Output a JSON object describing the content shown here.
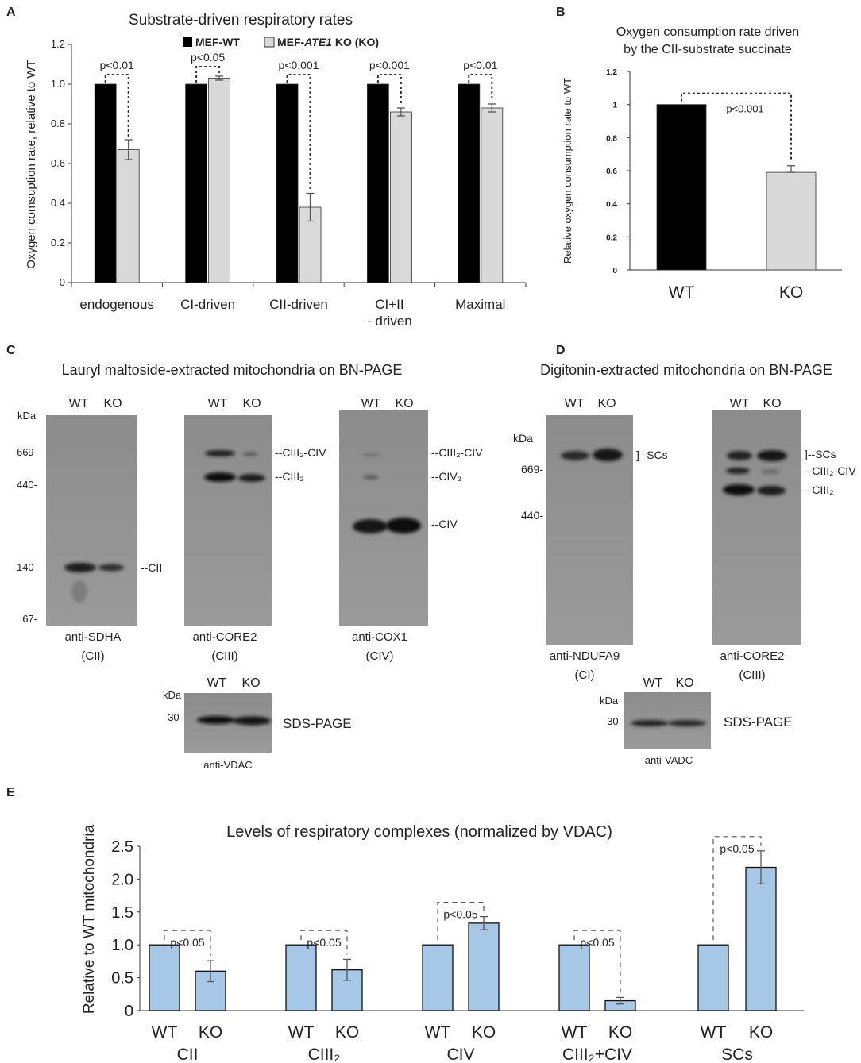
{
  "panel_letters": {
    "a": "A",
    "b": "B",
    "c": "C",
    "d": "D",
    "e": "E"
  },
  "chart_data": [
    {
      "id": "A",
      "type": "bar",
      "title": "Substrate-driven respiratory rates",
      "ylabel": "Oxygen comsuption rate, relative to WT",
      "xlabel": "",
      "ylim": [
        0,
        1.2
      ],
      "yticks": [
        "0",
        "0.2",
        "0.4",
        "0.6",
        "0.8",
        "1.0",
        "1.2"
      ],
      "categories": [
        "endogenous",
        "CI-driven",
        "CII-driven",
        "CI+II",
        "Maximal"
      ],
      "category_line2": [
        "",
        "",
        "",
        "- driven",
        ""
      ],
      "legend": {
        "wt": "MEF-WT",
        "ko_prefix": "MEF-",
        "ko_italic": "ATE1",
        "ko_suffix": " KO (KO)"
      },
      "series": [
        {
          "name": "MEF-WT",
          "color": "#000000",
          "values": [
            1.0,
            1.0,
            1.0,
            1.0,
            1.0
          ],
          "errors": [
            0.0,
            0.0,
            0.0,
            0.0,
            0.0
          ]
        },
        {
          "name": "MEF-ATE1 KO (KO)",
          "color": "#d9d9d9",
          "values": [
            0.67,
            1.03,
            0.38,
            0.86,
            0.88
          ],
          "errors": [
            0.05,
            0.01,
            0.07,
            0.02,
            0.02
          ]
        }
      ],
      "annotations": [
        "p<0.01",
        "p<0.05",
        "p<0.001",
        "p<0.001",
        "p<0.01"
      ]
    },
    {
      "id": "B",
      "type": "bar",
      "title_line1": "Oxygen consumption rate driven",
      "title_line2": "by the CII-substrate succinate",
      "ylabel": "Relative oxygen consumption rate to WT",
      "ylim": [
        0,
        1.2
      ],
      "yticks": [
        "0",
        "0.2",
        "0.4",
        "0.6",
        "0.8",
        "1",
        "1.2"
      ],
      "categories": [
        "WT",
        "KO"
      ],
      "values": [
        1.0,
        0.59
      ],
      "errors": [
        0.0,
        0.04
      ],
      "colors": [
        "#000000",
        "#d9d9d9"
      ],
      "annotation": "p<0.001"
    },
    {
      "id": "E",
      "type": "bar",
      "title": "Levels of respiratory complexes (normalized by VDAC)",
      "ylabel": "Relative to WT mitochondria",
      "ylim": [
        0,
        2.5
      ],
      "yticks": [
        "0",
        "0.5",
        "1.0",
        "1.5",
        "2.0",
        "2.5"
      ],
      "groups": [
        "CII",
        "CIII₂",
        "CIV",
        "CIII₂+CIV",
        "SCs"
      ],
      "categories": [
        "WT",
        "KO"
      ],
      "values": [
        [
          1.0,
          0.6
        ],
        [
          1.0,
          0.62
        ],
        [
          1.0,
          1.33
        ],
        [
          1.0,
          0.15
        ],
        [
          1.0,
          2.18
        ]
      ],
      "errors": [
        [
          0.0,
          0.16
        ],
        [
          0.0,
          0.16
        ],
        [
          0.0,
          0.1
        ],
        [
          0.0,
          0.05
        ],
        [
          0.0,
          0.25
        ]
      ],
      "color": "#a7c7e7",
      "annotations": [
        "p<0.05",
        "p<0.05",
        "p<0.05",
        "p<0.05",
        "p<0.05"
      ]
    }
  ],
  "blots": {
    "c_title": "Lauryl maltoside-extracted mitochondria on BN-PAGE",
    "d_title": "Digitonin-extracted mitochondria on BN-PAGE",
    "lanes": [
      "WT",
      "KO"
    ],
    "kda": "kDa",
    "c_markers": [
      "669-",
      "440-",
      "140-",
      "67-"
    ],
    "d_markers": [
      "669-",
      "440-"
    ],
    "sds_marker": "30-",
    "sds_label": "SDS-PAGE",
    "c_blots": [
      {
        "antibody": "anti-SDHA",
        "complex": "(CII)",
        "bands": [
          "--CII"
        ]
      },
      {
        "antibody": "anti-CORE2",
        "complex": "(CIII)",
        "bands": [
          "--CIII₂-CIV",
          "--CIII₂"
        ]
      },
      {
        "antibody": "anti-COX1",
        "complex": "(CIV)",
        "bands": [
          "--CIII₂-CIV",
          "--CIV₂",
          "--CIV"
        ]
      }
    ],
    "c_sds_antibody": "anti-VDAC",
    "d_blots": [
      {
        "antibody": "anti-NDUFA9",
        "complex": "(CI)",
        "bands": [
          "]--SCs"
        ]
      },
      {
        "antibody": "anti-CORE2",
        "complex": "(CIII)",
        "bands": [
          "]--SCs",
          "--CIII₂-CIV",
          "--CIII₂"
        ]
      }
    ],
    "d_sds_antibody": "anti-VADC"
  }
}
